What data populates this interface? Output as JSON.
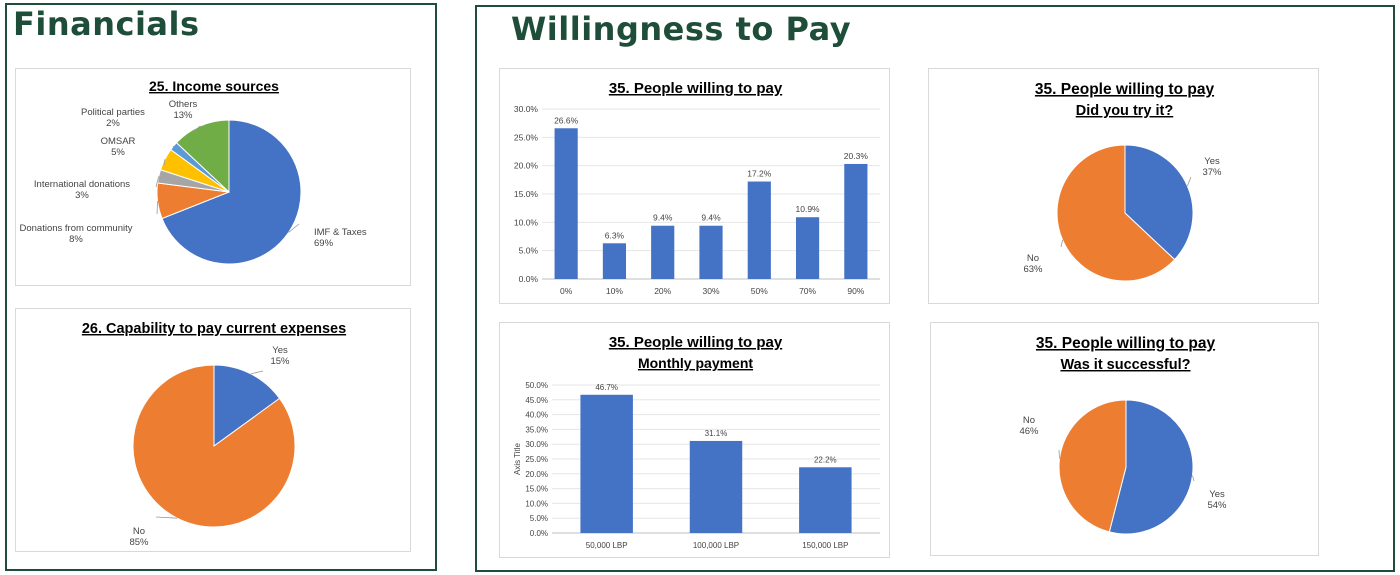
{
  "sections": {
    "financials": "Financials",
    "willingness": "Willingness to Pay"
  },
  "colors": {
    "blue": "#4472c4",
    "orange": "#ed7d31",
    "gray": "#a5a5a5",
    "yellow": "#ffc000",
    "lightblue": "#5b9bd5",
    "green": "#70ad47",
    "frame": "#1e4d3a"
  },
  "chart_data": [
    {
      "id": "income",
      "type": "pie",
      "title": "25. Income sources",
      "slices": [
        {
          "label": "IMF & Taxes",
          "pct": "69%",
          "value": 69,
          "color": "#4472c4"
        },
        {
          "label": "Donations from community",
          "pct": "8%",
          "value": 8,
          "color": "#ed7d31"
        },
        {
          "label": "International donations",
          "pct": "3%",
          "value": 3,
          "color": "#a5a5a5"
        },
        {
          "label": "OMSAR",
          "pct": "5%",
          "value": 5,
          "color": "#ffc000"
        },
        {
          "label": "Political parties",
          "pct": "2%",
          "value": 2,
          "color": "#5b9bd5"
        },
        {
          "label": "Others",
          "pct": "13%",
          "value": 13,
          "color": "#70ad47"
        }
      ]
    },
    {
      "id": "capability",
      "type": "pie",
      "title": "26. Capability to pay current expenses",
      "slices": [
        {
          "label": "Yes",
          "pct": "15%",
          "value": 15,
          "color": "#4472c4"
        },
        {
          "label": "No",
          "pct": "85%",
          "value": 85,
          "color": "#ed7d31"
        }
      ]
    },
    {
      "id": "willing",
      "type": "bar",
      "title": "35. People willing to pay",
      "categories": [
        "0%",
        "10%",
        "20%",
        "30%",
        "50%",
        "70%",
        "90%"
      ],
      "values": [
        26.6,
        6.3,
        9.4,
        9.4,
        17.2,
        10.9,
        20.3
      ],
      "data_labels": [
        "26.6%",
        "6.3%",
        "9.4%",
        "9.4%",
        "17.2%",
        "10.9%",
        "20.3%"
      ],
      "yticks": [
        "0.0%",
        "5.0%",
        "10.0%",
        "15.0%",
        "20.0%",
        "25.0%",
        "30.0%"
      ],
      "ylim": [
        0,
        30
      ],
      "color": "#4472c4"
    },
    {
      "id": "tried",
      "type": "pie",
      "title": "35. People willing to pay",
      "subtitle": "Did you try it?",
      "slices": [
        {
          "label": "Yes",
          "pct": "37%",
          "value": 37,
          "color": "#4472c4"
        },
        {
          "label": "No",
          "pct": "63%",
          "value": 63,
          "color": "#ed7d31"
        }
      ]
    },
    {
      "id": "monthly",
      "type": "bar",
      "title": "35. People willing to pay",
      "subtitle": "Monthly payment",
      "ylabel": "Axis Title",
      "categories": [
        "50,000 LBP",
        "100,000 LBP",
        "150,000 LBP"
      ],
      "values": [
        46.7,
        31.1,
        22.2
      ],
      "data_labels": [
        "46.7%",
        "31.1%",
        "22.2%"
      ],
      "yticks": [
        "0.0%",
        "5.0%",
        "10.0%",
        "15.0%",
        "20.0%",
        "25.0%",
        "30.0%",
        "35.0%",
        "40.0%",
        "45.0%",
        "50.0%"
      ],
      "ylim": [
        0,
        50
      ],
      "color": "#4472c4"
    },
    {
      "id": "success",
      "type": "pie",
      "title": "35. People willing to pay",
      "subtitle": "Was it successful?",
      "slices": [
        {
          "label": "Yes",
          "pct": "54%",
          "value": 54,
          "color": "#4472c4"
        },
        {
          "label": "No",
          "pct": "46%",
          "value": 46,
          "color": "#ed7d31"
        }
      ]
    }
  ]
}
